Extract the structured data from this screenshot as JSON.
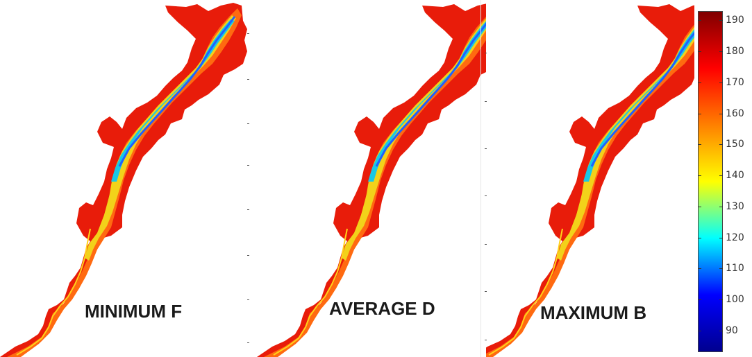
{
  "panels": [
    {
      "id": "minimum",
      "label": "MINIMUM F"
    },
    {
      "id": "average",
      "label": "AVERAGE D"
    },
    {
      "id": "maximum",
      "label": "MAXIMUM B"
    }
  ],
  "colorbar": {
    "min": 83,
    "max": 193,
    "ticks": [
      190,
      180,
      170,
      160,
      150,
      140,
      130,
      120,
      110,
      100,
      90
    ],
    "colormap": [
      "#00008f",
      "#0000ff",
      "#00ffff",
      "#ffff00",
      "#ff8000",
      "#ff0000",
      "#800000"
    ]
  },
  "colors": {
    "valley_edge": "#e81c0a",
    "valley_mid": "#ff6a10",
    "floodplain": "#ffd21a",
    "channel_inner": "#18c8e6",
    "channel_core": "#2060ff"
  }
}
